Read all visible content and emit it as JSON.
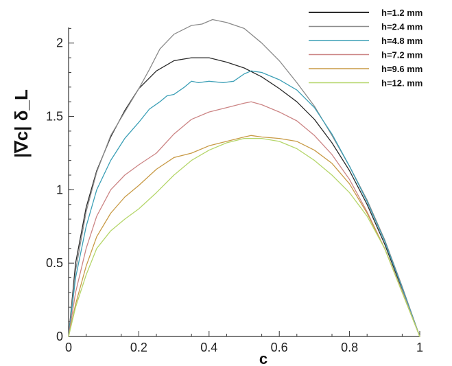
{
  "chart_data": {
    "type": "line",
    "xlabel": "c",
    "ylabel": "|∇c| δ_L",
    "xlim": [
      0,
      1
    ],
    "ylim": [
      0,
      2.2
    ],
    "x_ticks": [
      "0",
      "0.2",
      "0.4",
      "0.6",
      "0.8",
      "1"
    ],
    "y_ticks": [
      "0",
      "0.5",
      "1",
      "1.5",
      "2"
    ],
    "grid": false,
    "legend_position": "top-right",
    "series": [
      {
        "name": "h=1.2 mm",
        "color": "#2b2b2b",
        "x": [
          0,
          0.02,
          0.05,
          0.08,
          0.12,
          0.16,
          0.2,
          0.25,
          0.3,
          0.35,
          0.4,
          0.45,
          0.5,
          0.55,
          0.6,
          0.65,
          0.7,
          0.75,
          0.8,
          0.85,
          0.9,
          0.95,
          1.0
        ],
        "y": [
          0,
          0.5,
          0.88,
          1.13,
          1.36,
          1.54,
          1.69,
          1.81,
          1.88,
          1.9,
          1.9,
          1.87,
          1.83,
          1.77,
          1.69,
          1.6,
          1.48,
          1.32,
          1.13,
          0.9,
          0.63,
          0.32,
          0
        ]
      },
      {
        "name": "h=2.4 mm",
        "color": "#8a8a8a",
        "x": [
          0,
          0.02,
          0.05,
          0.08,
          0.12,
          0.16,
          0.2,
          0.23,
          0.26,
          0.3,
          0.35,
          0.38,
          0.41,
          0.45,
          0.5,
          0.55,
          0.6,
          0.65,
          0.7,
          0.75,
          0.8,
          0.85,
          0.9,
          0.95,
          1.0
        ],
        "y": [
          0,
          0.45,
          0.85,
          1.12,
          1.37,
          1.53,
          1.69,
          1.82,
          1.96,
          2.06,
          2.12,
          2.13,
          2.16,
          2.14,
          2.1,
          2.0,
          1.88,
          1.73,
          1.57,
          1.37,
          1.16,
          0.93,
          0.66,
          0.34,
          0
        ]
      },
      {
        "name": "h=4.8 mm",
        "color": "#3b9fb6",
        "x": [
          0,
          0.02,
          0.05,
          0.08,
          0.12,
          0.16,
          0.2,
          0.23,
          0.26,
          0.28,
          0.3,
          0.33,
          0.35,
          0.37,
          0.4,
          0.44,
          0.47,
          0.5,
          0.52,
          0.55,
          0.6,
          0.65,
          0.7,
          0.75,
          0.8,
          0.85,
          0.9,
          0.95,
          1.0
        ],
        "y": [
          0,
          0.4,
          0.75,
          1.0,
          1.2,
          1.35,
          1.46,
          1.55,
          1.6,
          1.64,
          1.65,
          1.7,
          1.74,
          1.73,
          1.74,
          1.73,
          1.74,
          1.79,
          1.81,
          1.8,
          1.75,
          1.68,
          1.56,
          1.38,
          1.16,
          0.92,
          0.65,
          0.33,
          0
        ]
      },
      {
        "name": "h=7.2 mm",
        "color": "#cc8585",
        "x": [
          0,
          0.02,
          0.05,
          0.08,
          0.12,
          0.16,
          0.2,
          0.25,
          0.3,
          0.35,
          0.4,
          0.45,
          0.5,
          0.52,
          0.55,
          0.6,
          0.65,
          0.7,
          0.75,
          0.8,
          0.85,
          0.9,
          0.95,
          1.0
        ],
        "y": [
          0,
          0.3,
          0.6,
          0.82,
          1.0,
          1.1,
          1.17,
          1.25,
          1.38,
          1.48,
          1.53,
          1.56,
          1.59,
          1.6,
          1.58,
          1.53,
          1.47,
          1.37,
          1.24,
          1.07,
          0.85,
          0.6,
          0.31,
          0
        ]
      },
      {
        "name": "h=9.6 mm",
        "color": "#c89a45",
        "x": [
          0,
          0.02,
          0.05,
          0.08,
          0.12,
          0.16,
          0.2,
          0.25,
          0.3,
          0.35,
          0.4,
          0.45,
          0.5,
          0.52,
          0.55,
          0.6,
          0.65,
          0.7,
          0.75,
          0.8,
          0.85,
          0.9,
          0.95,
          1.0
        ],
        "y": [
          0,
          0.22,
          0.48,
          0.68,
          0.84,
          0.95,
          1.03,
          1.14,
          1.22,
          1.25,
          1.3,
          1.33,
          1.36,
          1.37,
          1.36,
          1.35,
          1.33,
          1.27,
          1.18,
          1.04,
          0.84,
          0.6,
          0.3,
          0
        ]
      },
      {
        "name": "h=12. mm",
        "color": "#b5d66a",
        "x": [
          0,
          0.02,
          0.05,
          0.08,
          0.12,
          0.16,
          0.2,
          0.25,
          0.3,
          0.35,
          0.4,
          0.45,
          0.5,
          0.55,
          0.6,
          0.65,
          0.7,
          0.75,
          0.8,
          0.85,
          0.9,
          0.95,
          1.0
        ],
        "y": [
          0,
          0.2,
          0.42,
          0.6,
          0.72,
          0.8,
          0.87,
          0.98,
          1.1,
          1.2,
          1.27,
          1.32,
          1.35,
          1.35,
          1.33,
          1.28,
          1.2,
          1.1,
          0.98,
          0.82,
          0.6,
          0.3,
          0
        ]
      }
    ]
  }
}
